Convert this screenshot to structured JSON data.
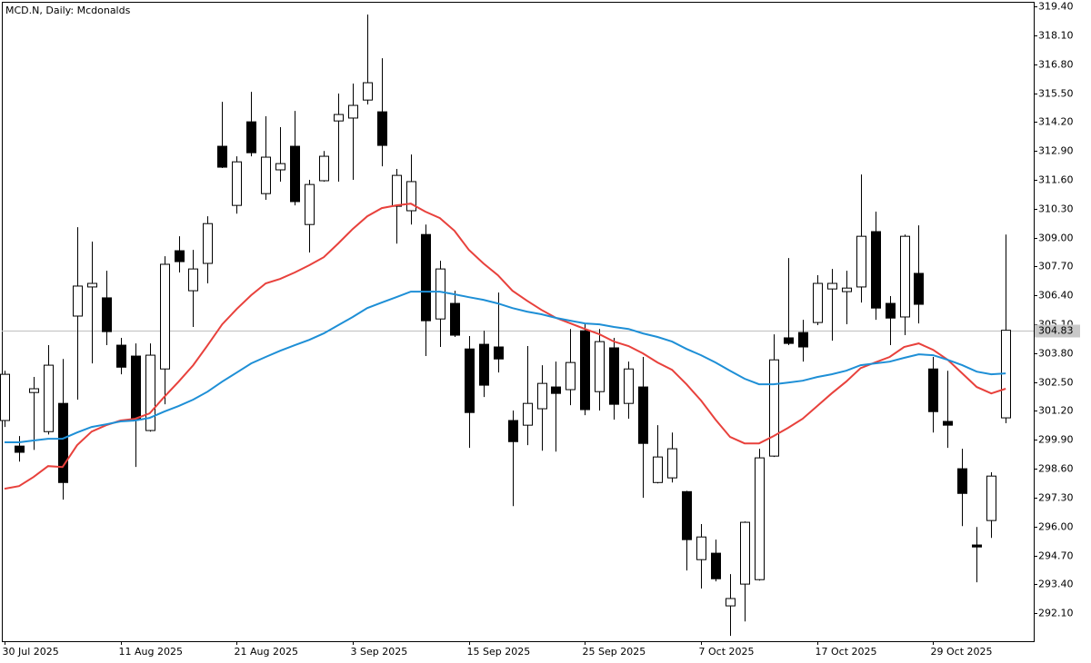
{
  "chart_data": {
    "type": "candlestick",
    "title": "MCD.N, Daily:  Mcdonalds",
    "categories": [
      "30 Jul 2025",
      null,
      null,
      null,
      null,
      null,
      null,
      null,
      "11 Aug 2025",
      null,
      null,
      null,
      null,
      null,
      null,
      null,
      "21 Aug 2025",
      null,
      null,
      null,
      null,
      null,
      null,
      null,
      "3 Sep 2025",
      null,
      null,
      null,
      null,
      null,
      null,
      null,
      "15 Sep 2025",
      null,
      null,
      null,
      null,
      null,
      null,
      null,
      "25 Sep 2025",
      null,
      null,
      null,
      null,
      null,
      null,
      null,
      "7 Oct 2025",
      null,
      null,
      null,
      null,
      null,
      null,
      null,
      "17 Oct 2025",
      null,
      null,
      null,
      null,
      null,
      null,
      null,
      "29 Oct 2025",
      null,
      null,
      null,
      null,
      null
    ],
    "open": [
      300.77,
      299.62,
      302.03,
      300.27,
      301.54,
      305.47,
      306.78,
      306.29,
      304.16,
      303.67,
      300.32,
      303.09,
      308.41,
      306.61,
      307.84,
      313.11,
      310.45,
      314.21,
      310.98,
      312.05,
      313.11,
      309.59,
      311.56,
      314.25,
      314.38,
      315.19,
      314.66,
      310.41,
      310.21,
      309.14,
      305.34,
      306.04,
      303.99,
      304.2,
      304.08,
      300.77,
      300.56,
      301.3,
      302.28,
      302.16,
      304.81,
      302.07,
      304.04,
      301.54,
      302.28,
      297.98,
      298.19,
      297.57,
      294.51,
      294.8,
      292.43,
      293.41,
      293.61,
      299.17,
      304.49,
      304.73,
      305.18,
      306.69,
      306.57,
      306.78,
      309.27,
      306.04,
      305.43,
      307.39,
      303.09,
      300.73,
      298.6,
      295.17,
      296.27,
      300.89
    ],
    "high": [
      303.01,
      300.07,
      302.73,
      304.16,
      303.54,
      309.47,
      308.82,
      307.51,
      304.49,
      304.24,
      304.24,
      308.16,
      309.06,
      308.45,
      309.96,
      315.11,
      312.66,
      315.56,
      314.46,
      313.97,
      314.7,
      311.6,
      312.9,
      315.48,
      315.93,
      319.04,
      317.07,
      312.09,
      312.74,
      309.59,
      307.96,
      306.61,
      304.57,
      304.81,
      306.53,
      301.22,
      304.12,
      303.26,
      303.42,
      304.89,
      305.14,
      304.89,
      304.49,
      303.42,
      303.63,
      300.56,
      300.23,
      297.61,
      296.11,
      295.41,
      293.86,
      296.23,
      299.5,
      304.65,
      308.08,
      305.3,
      307.31,
      307.59,
      307.51,
      311.84,
      310.17,
      306.37,
      309.14,
      309.55,
      303.63,
      303.01,
      299.5,
      295.98,
      298.44,
      309.14
    ],
    "low": [
      300.48,
      298.92,
      299.45,
      300.14,
      297.21,
      301.71,
      303.34,
      304.16,
      302.85,
      298.68,
      300.27,
      301.5,
      307.43,
      304.98,
      306.94,
      312.13,
      310.08,
      312.66,
      310.7,
      311.52,
      310.45,
      308.33,
      311.52,
      311.52,
      311.6,
      314.99,
      312.21,
      308.73,
      309.59,
      303.67,
      304.08,
      304.53,
      299.54,
      301.83,
      302.93,
      296.92,
      299.66,
      299.41,
      299.37,
      301.46,
      301.01,
      301.22,
      300.81,
      300.85,
      297.29,
      297.94,
      297.98,
      294.02,
      293.21,
      293.53,
      291.08,
      291.73,
      293.57,
      299.13,
      304.16,
      303.42,
      305.06,
      304.36,
      305.1,
      306.08,
      305.3,
      304.16,
      304.61,
      305.14,
      300.23,
      299.54,
      296.02,
      293.49,
      295.49,
      300.65
    ],
    "close": [
      302.85,
      299.34,
      302.2,
      303.26,
      297.98,
      306.82,
      306.94,
      304.77,
      303.17,
      300.81,
      303.71,
      307.8,
      307.92,
      307.59,
      309.63,
      312.17,
      312.41,
      312.82,
      312.62,
      312.33,
      310.62,
      311.39,
      312.66,
      314.54,
      314.95,
      315.97,
      313.15,
      311.8,
      311.52,
      305.26,
      307.59,
      304.61,
      301.13,
      302.36,
      303.54,
      299.82,
      301.54,
      302.44,
      301.99,
      303.38,
      301.26,
      304.32,
      301.5,
      303.09,
      299.74,
      299.13,
      299.5,
      295.41,
      295.53,
      293.65,
      292.76,
      296.19,
      299.09,
      303.5,
      304.24,
      304.08,
      306.94,
      306.94,
      306.73,
      309.06,
      305.83,
      305.38,
      309.06,
      306.0,
      301.17,
      300.56,
      297.49,
      295.08,
      298.27,
      304.83
    ],
    "up_color": "#ffffff",
    "down_color": "#000000",
    "outline_color": "#000000",
    "lines": [
      {
        "color": "#e8413c",
        "values": [
          297.7,
          297.82,
          298.23,
          298.72,
          298.68,
          299.66,
          300.27,
          300.56,
          300.77,
          300.85,
          301.09,
          301.83,
          302.52,
          303.26,
          304.16,
          305.1,
          305.79,
          306.41,
          306.94,
          307.14,
          307.43,
          307.76,
          308.12,
          308.74,
          309.39,
          309.96,
          310.33,
          310.45,
          310.53,
          310.17,
          309.88,
          309.31,
          308.45,
          307.84,
          307.31,
          306.61,
          306.16,
          305.75,
          305.39,
          305.14,
          304.89,
          304.65,
          304.32,
          304.12,
          303.79,
          303.38,
          303.05,
          302.4,
          301.67,
          300.81,
          300.03,
          299.74,
          299.74,
          300.07,
          300.44,
          300.85,
          301.42,
          301.99,
          302.52,
          303.13,
          303.38,
          303.63,
          304.08,
          304.24,
          303.95,
          303.5,
          302.89,
          302.28,
          301.99,
          302.2
        ]
      },
      {
        "color": "#1e8fd6",
        "values": [
          299.79,
          299.79,
          299.87,
          299.95,
          299.95,
          300.23,
          300.48,
          300.6,
          300.73,
          300.77,
          300.89,
          301.17,
          301.42,
          301.71,
          302.07,
          302.52,
          302.93,
          303.34,
          303.63,
          303.91,
          304.16,
          304.4,
          304.69,
          305.06,
          305.43,
          305.83,
          306.08,
          306.32,
          306.57,
          306.57,
          306.57,
          306.45,
          306.32,
          306.2,
          306.04,
          305.83,
          305.67,
          305.55,
          305.39,
          305.26,
          305.14,
          305.1,
          304.98,
          304.89,
          304.69,
          304.53,
          304.32,
          303.99,
          303.71,
          303.38,
          303.01,
          302.65,
          302.4,
          302.4,
          302.48,
          302.56,
          302.73,
          302.85,
          303.01,
          303.26,
          303.34,
          303.42,
          303.59,
          303.75,
          303.71,
          303.5,
          303.26,
          302.97,
          302.85,
          302.89
        ]
      }
    ],
    "last_price": {
      "value": 304.83,
      "label": "304.83"
    },
    "ylim": [
      290.84,
      319.61
    ],
    "yticks": [
      {
        "value": 319.4,
        "label": "319.40"
      },
      {
        "value": 318.1,
        "label": "318.10"
      },
      {
        "value": 316.8,
        "label": "316.80"
      },
      {
        "value": 315.5,
        "label": "315.50"
      },
      {
        "value": 314.2,
        "label": "314.20"
      },
      {
        "value": 312.9,
        "label": "312.90"
      },
      {
        "value": 311.6,
        "label": "311.60"
      },
      {
        "value": 310.3,
        "label": "310.30"
      },
      {
        "value": 309,
        "label": "309.00"
      },
      {
        "value": 307.7,
        "label": "307.70"
      },
      {
        "value": 306.4,
        "label": "306.40"
      },
      {
        "value": 305.1,
        "label": "305.10"
      },
      {
        "value": 303.8,
        "label": "303.80"
      },
      {
        "value": 302.5,
        "label": "302.50"
      },
      {
        "value": 301.2,
        "label": "301.20"
      },
      {
        "value": 299.9,
        "label": "299.90"
      },
      {
        "value": 298.6,
        "label": "298.60"
      },
      {
        "value": 297.3,
        "label": "297.30"
      },
      {
        "value": 296,
        "label": "296.00"
      },
      {
        "value": 294.7,
        "label": "294.70"
      },
      {
        "value": 293.4,
        "label": "293.40"
      },
      {
        "value": 292.1,
        "label": "292.10"
      }
    ],
    "grid": false
  }
}
